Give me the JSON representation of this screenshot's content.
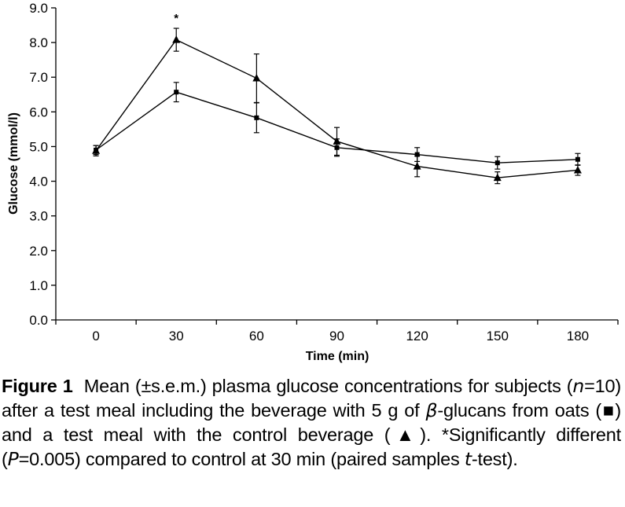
{
  "chart_data": {
    "type": "line",
    "title": "",
    "xlabel": "Time (min)",
    "ylabel": "Glucose (mmol/l)",
    "x": [
      0,
      30,
      60,
      90,
      120,
      150,
      180
    ],
    "categories": [
      "0",
      "30",
      "60",
      "90",
      "120",
      "150",
      "180"
    ],
    "ylim": [
      0,
      9
    ],
    "yticks": [
      "0.0",
      "1.0",
      "2.0",
      "3.0",
      "4.0",
      "5.0",
      "6.0",
      "7.0",
      "8.0",
      "9.0"
    ],
    "grid": false,
    "legend": "none",
    "series": [
      {
        "name": "beverage with 5 g of beta-glucans from oats",
        "marker": "square",
        "values": [
          4.9,
          6.57,
          5.83,
          4.97,
          4.77,
          4.53,
          4.63
        ],
        "errors": [
          0.13,
          0.28,
          0.43,
          0.25,
          0.2,
          0.18,
          0.17
        ]
      },
      {
        "name": "control beverage",
        "marker": "triangle",
        "values": [
          4.88,
          8.08,
          6.97,
          5.15,
          4.43,
          4.1,
          4.32
        ],
        "errors": [
          0.15,
          0.33,
          0.7,
          0.4,
          0.3,
          0.17,
          0.15
        ]
      }
    ],
    "annotations": [
      {
        "x": 30,
        "text": "*"
      }
    ]
  },
  "caption": {
    "label": "Figure 1",
    "part1": "Mean (±s.e.m.) plasma glucose concentrations for subjects (",
    "n_var": "n",
    "part2": "=10) after a test meal including the beverage with 5 g of ",
    "beta": "β",
    "part3": "-glucans from oats (",
    "square_symbol": "■",
    "part4": ") and a test meal with the control beverage (",
    "triangle_symbol": "▲",
    "part5": "). *Significantly different (",
    "p_var": "P",
    "part6": "=0.005) compared to control at 30 min (paired samples ",
    "t_var": "t",
    "part7": "-test)."
  }
}
